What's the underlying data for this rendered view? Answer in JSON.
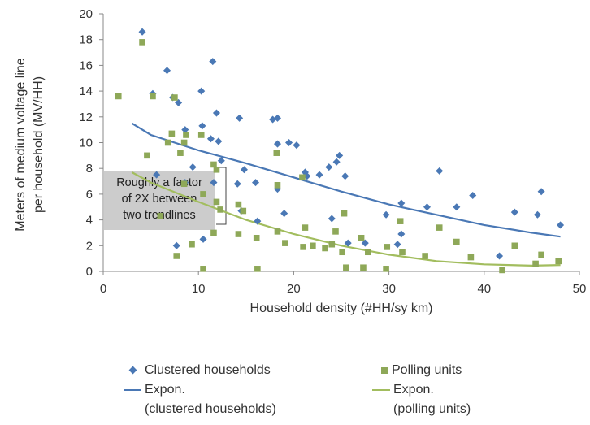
{
  "chart_data": {
    "type": "scatter",
    "xlabel": "Household density (#HH/sy km)",
    "ylabel_lines": [
      "Meters of medium voltage line",
      "per household (MV/HH)"
    ],
    "xlim": [
      0,
      50
    ],
    "ylim": [
      0,
      20
    ],
    "x_ticks": [
      "0",
      "10",
      "20",
      "30",
      "40",
      "50"
    ],
    "y_ticks": [
      "0",
      "2",
      "4",
      "6",
      "8",
      "10",
      "12",
      "14",
      "16",
      "18",
      "20"
    ],
    "grid": false,
    "legend_position": "bottom",
    "annotation_lines": [
      "Roughly a factor",
      "of 2X between",
      "two trendlines"
    ],
    "series": [
      {
        "name": "Clustered households",
        "marker": "diamond",
        "color": "#4a78b5",
        "points": [
          [
            4.1,
            18.6
          ],
          [
            6.7,
            15.6
          ],
          [
            11.5,
            16.3
          ],
          [
            10.3,
            14.0
          ],
          [
            5.2,
            13.8
          ],
          [
            7.3,
            13.5
          ],
          [
            7.9,
            13.1
          ],
          [
            11.9,
            12.3
          ],
          [
            14.3,
            11.9
          ],
          [
            17.8,
            11.8
          ],
          [
            18.3,
            11.9
          ],
          [
            8.6,
            11.0
          ],
          [
            10.4,
            11.3
          ],
          [
            11.3,
            10.3
          ],
          [
            12.1,
            10.1
          ],
          [
            19.5,
            10.0
          ],
          [
            18.3,
            9.9
          ],
          [
            20.3,
            9.8
          ],
          [
            24.8,
            9.0
          ],
          [
            24.5,
            8.5
          ],
          [
            9.4,
            8.1
          ],
          [
            12.4,
            8.6
          ],
          [
            14.8,
            7.9
          ],
          [
            21.2,
            7.7
          ],
          [
            21.4,
            7.4
          ],
          [
            22.7,
            7.5
          ],
          [
            23.7,
            8.1
          ],
          [
            25.4,
            7.4
          ],
          [
            35.3,
            7.8
          ],
          [
            5.6,
            7.5
          ],
          [
            8.6,
            6.9
          ],
          [
            11.6,
            6.9
          ],
          [
            14.1,
            6.8
          ],
          [
            16.0,
            6.9
          ],
          [
            18.3,
            6.4
          ],
          [
            38.8,
            5.9
          ],
          [
            46.0,
            6.2
          ],
          [
            31.3,
            5.3
          ],
          [
            34.0,
            5.0
          ],
          [
            37.1,
            5.0
          ],
          [
            29.7,
            4.4
          ],
          [
            19.0,
            4.5
          ],
          [
            24.0,
            4.1
          ],
          [
            14.5,
            4.7
          ],
          [
            43.2,
            4.6
          ],
          [
            45.6,
            4.4
          ],
          [
            48.0,
            3.6
          ],
          [
            16.2,
            3.9
          ],
          [
            31.3,
            2.9
          ],
          [
            27.5,
            2.2
          ],
          [
            25.7,
            2.2
          ],
          [
            30.9,
            2.1
          ],
          [
            7.7,
            2.0
          ],
          [
            10.5,
            2.5
          ],
          [
            41.6,
            1.2
          ]
        ]
      },
      {
        "name": "Polling units",
        "marker": "square",
        "color": "#8ea858",
        "points": [
          [
            4.1,
            17.8
          ],
          [
            1.6,
            13.6
          ],
          [
            5.2,
            13.6
          ],
          [
            7.5,
            13.5
          ],
          [
            7.2,
            10.7
          ],
          [
            10.3,
            10.6
          ],
          [
            8.5,
            10.0
          ],
          [
            8.7,
            10.6
          ],
          [
            6.8,
            10.0
          ],
          [
            4.6,
            9.0
          ],
          [
            8.1,
            9.2
          ],
          [
            18.2,
            9.2
          ],
          [
            11.6,
            8.3
          ],
          [
            11.9,
            7.9
          ],
          [
            20.9,
            7.3
          ],
          [
            8.5,
            6.8
          ],
          [
            18.3,
            6.7
          ],
          [
            10.5,
            6.0
          ],
          [
            14.2,
            5.2
          ],
          [
            11.9,
            5.4
          ],
          [
            12.3,
            4.8
          ],
          [
            14.7,
            4.7
          ],
          [
            25.3,
            4.5
          ],
          [
            6.0,
            4.3
          ],
          [
            31.2,
            3.9
          ],
          [
            21.2,
            3.4
          ],
          [
            35.3,
            3.4
          ],
          [
            11.6,
            3.0
          ],
          [
            14.2,
            2.9
          ],
          [
            16.1,
            2.6
          ],
          [
            18.3,
            3.1
          ],
          [
            24.4,
            3.1
          ],
          [
            27.1,
            2.6
          ],
          [
            37.1,
            2.3
          ],
          [
            43.2,
            2.0
          ],
          [
            9.3,
            2.1
          ],
          [
            19.1,
            2.2
          ],
          [
            21.0,
            1.9
          ],
          [
            22.0,
            2.0
          ],
          [
            23.3,
            1.8
          ],
          [
            24.0,
            2.1
          ],
          [
            25.1,
            1.5
          ],
          [
            27.8,
            1.5
          ],
          [
            29.8,
            1.9
          ],
          [
            31.4,
            1.5
          ],
          [
            33.8,
            1.2
          ],
          [
            38.6,
            1.1
          ],
          [
            46.0,
            1.3
          ],
          [
            7.7,
            1.2
          ],
          [
            41.9,
            0.1
          ],
          [
            45.4,
            0.6
          ],
          [
            47.8,
            0.8
          ],
          [
            10.5,
            0.2
          ],
          [
            16.2,
            0.2
          ],
          [
            25.5,
            0.3
          ],
          [
            27.3,
            0.3
          ],
          [
            29.7,
            0.2
          ]
        ]
      }
    ],
    "trendlines": [
      {
        "name": "Expon.\n(clustered households)",
        "color": "#4a78b5",
        "points": [
          [
            3,
            11.5
          ],
          [
            5,
            10.6
          ],
          [
            10,
            9.4
          ],
          [
            15,
            8.4
          ],
          [
            20,
            7.3
          ],
          [
            25,
            6.2
          ],
          [
            30,
            5.2
          ],
          [
            35,
            4.4
          ],
          [
            40,
            3.6
          ],
          [
            45,
            3.0
          ],
          [
            48,
            2.7
          ]
        ]
      },
      {
        "name": "Expon.\n(polling units)",
        "color": "#a2bd5e",
        "points": [
          [
            3,
            7.7
          ],
          [
            5,
            6.9
          ],
          [
            10,
            5.4
          ],
          [
            15,
            4.0
          ],
          [
            20,
            2.9
          ],
          [
            25,
            2.0
          ],
          [
            30,
            1.3
          ],
          [
            35,
            0.8
          ],
          [
            40,
            0.55
          ],
          [
            45,
            0.45
          ],
          [
            48,
            0.5
          ]
        ]
      }
    ]
  },
  "legend": {
    "clustered_label": "Clustered households",
    "polling_label": "Polling units",
    "expon_clustered_line1": "Expon.",
    "expon_clustered_line2": "(clustered households)",
    "expon_polling_line1": "Expon.",
    "expon_polling_line2": "(polling units)"
  }
}
